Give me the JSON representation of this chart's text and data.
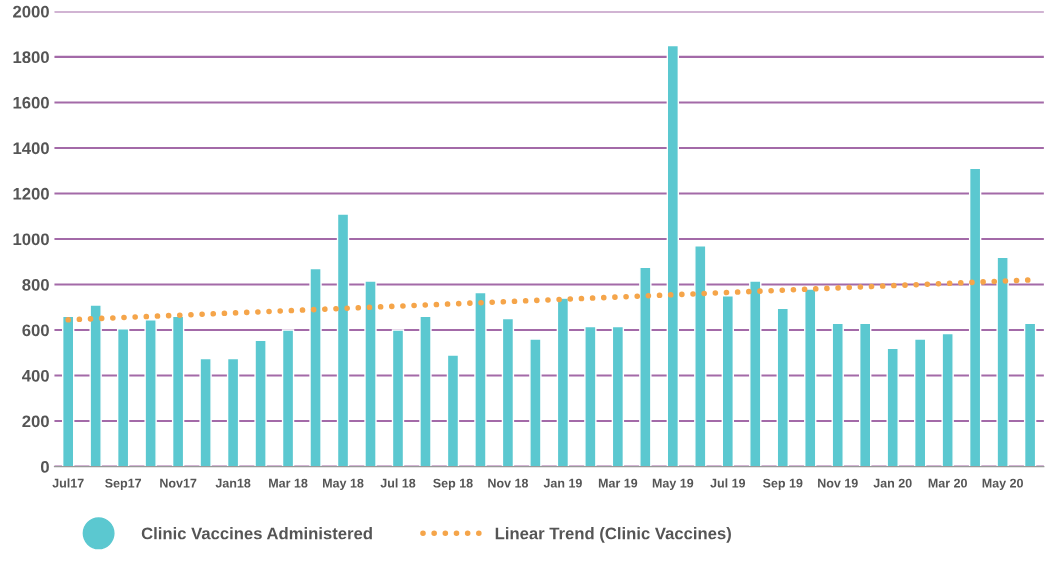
{
  "chart_data": {
    "type": "bar",
    "categories": [
      "Jul17",
      null,
      "Sep17",
      null,
      "Nov17",
      null,
      "Jan18",
      null,
      "Mar 18",
      null,
      "May 18",
      null,
      "Jul 18",
      null,
      "Sep 18",
      null,
      "Nov 18",
      null,
      "Jan 19",
      null,
      "Mar 19",
      null,
      "May 19",
      null,
      "Jul 19",
      null,
      "Sep 19",
      null,
      "Nov 19",
      null,
      "Jan 20",
      null,
      "Mar 20",
      null,
      "May 20",
      null
    ],
    "series": [
      {
        "name": "Clinic Vaccines Administered",
        "color": "#5bc8d0",
        "values": [
          660,
          710,
          605,
          645,
          660,
          475,
          475,
          555,
          600,
          870,
          1110,
          815,
          600,
          660,
          490,
          765,
          650,
          560,
          740,
          615,
          615,
          875,
          1850,
          970,
          750,
          815,
          695,
          780,
          630,
          630,
          520,
          560,
          585,
          1310,
          920,
          630
        ]
      },
      {
        "name": "Linear Trend (Clinic Vaccines)",
        "type": "line",
        "color": "#f5a54a",
        "line_style": "dotted",
        "values": [
          645,
          650,
          655,
          660,
          665,
          670,
          675,
          680,
          685,
          690,
          695,
          700,
          705,
          710,
          715,
          720,
          725,
          730,
          735,
          740,
          745,
          750,
          755,
          760,
          765,
          770,
          775,
          780,
          785,
          790,
          795,
          800,
          805,
          810,
          815,
          820
        ]
      }
    ],
    "ylim": [
      0,
      2000
    ],
    "yticks": [
      0,
      200,
      400,
      600,
      800,
      1000,
      1200,
      1400,
      1600,
      1800,
      2000
    ],
    "grid": "y",
    "legend": "bottom"
  }
}
